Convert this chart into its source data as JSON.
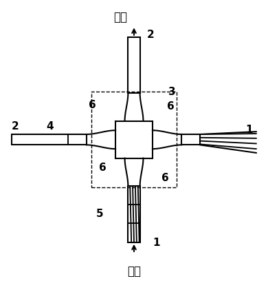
{
  "bg_color": "#ffffff",
  "line_color": "#000000",
  "lw": 1.5,
  "labels": {
    "top_text": "输出",
    "bottom_text": "输入",
    "num_2_top": "2",
    "num_3": "3",
    "num_2_left": "2",
    "num_4": "4",
    "num_5": "5",
    "num_1_bottom": "1",
    "num_1_right": "1",
    "num_6_tl": "6",
    "num_6_tr": "6",
    "num_6_bl": "6",
    "num_6_br": "6"
  }
}
